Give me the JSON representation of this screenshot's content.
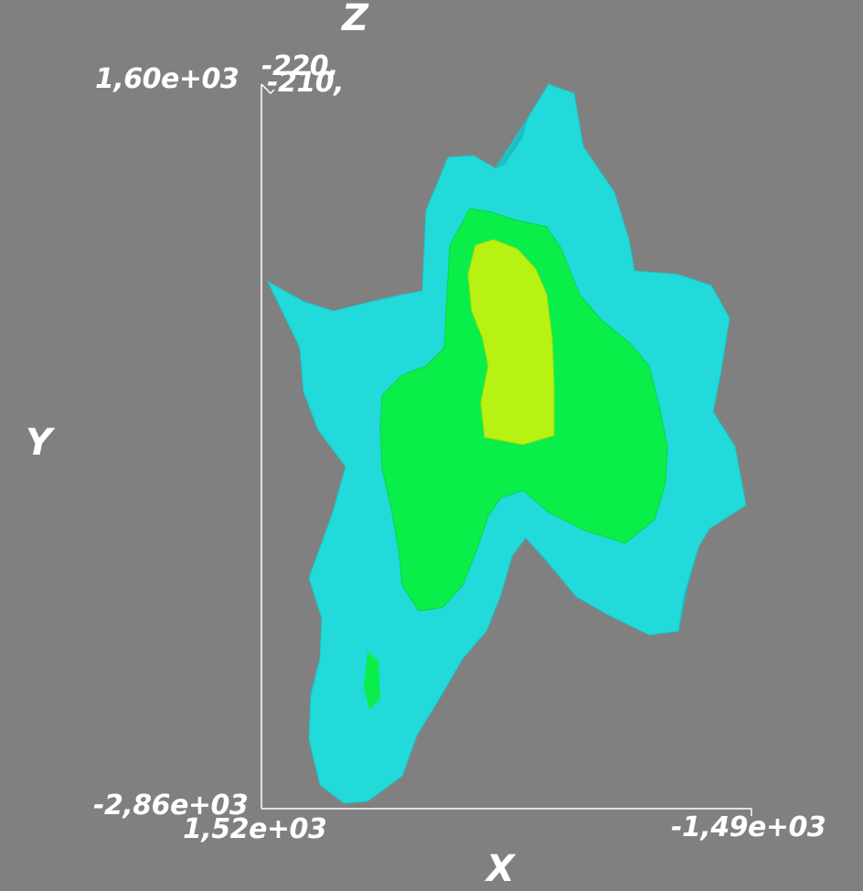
{
  "axes": {
    "x_title": "X",
    "y_title": "Y",
    "z_title": "Z",
    "x_min_label": "1,52e+03",
    "x_max_label": "-1,49e+03",
    "y_max_label": "1,60e+03",
    "y_min_label": "-2,86e+03",
    "z_label_a": "-220,",
    "z_label_b": "-210,"
  },
  "colors": {
    "background": "#808080",
    "axis": "#ffffff",
    "outer_surface": "#22dada",
    "middle_surface": "#0aee4a",
    "inner_surface": "#b8f212"
  }
}
